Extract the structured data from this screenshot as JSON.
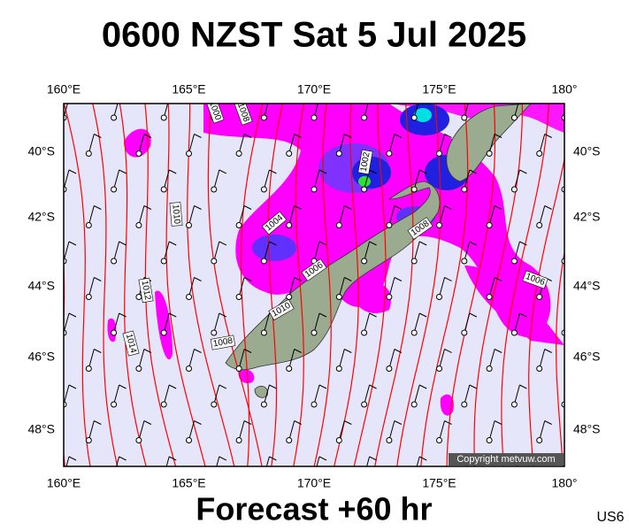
{
  "title": "0600 NZST Sat 5 Jul 2025",
  "lon_labels": [
    "160°E",
    "165°E",
    "170°E",
    "175°E",
    "180°"
  ],
  "lat_labels": [
    "40°S",
    "42°S",
    "44°S",
    "46°S",
    "48°S"
  ],
  "isobar_labels": [
    "1000",
    "1008",
    "1002",
    "1010",
    "1004",
    "1008",
    "1006",
    "1012",
    "1010",
    "1014",
    "1008",
    "1006"
  ],
  "copyright": "Copyright metvuw.com",
  "footer": "Forecast +60 hr",
  "code": "US6"
}
